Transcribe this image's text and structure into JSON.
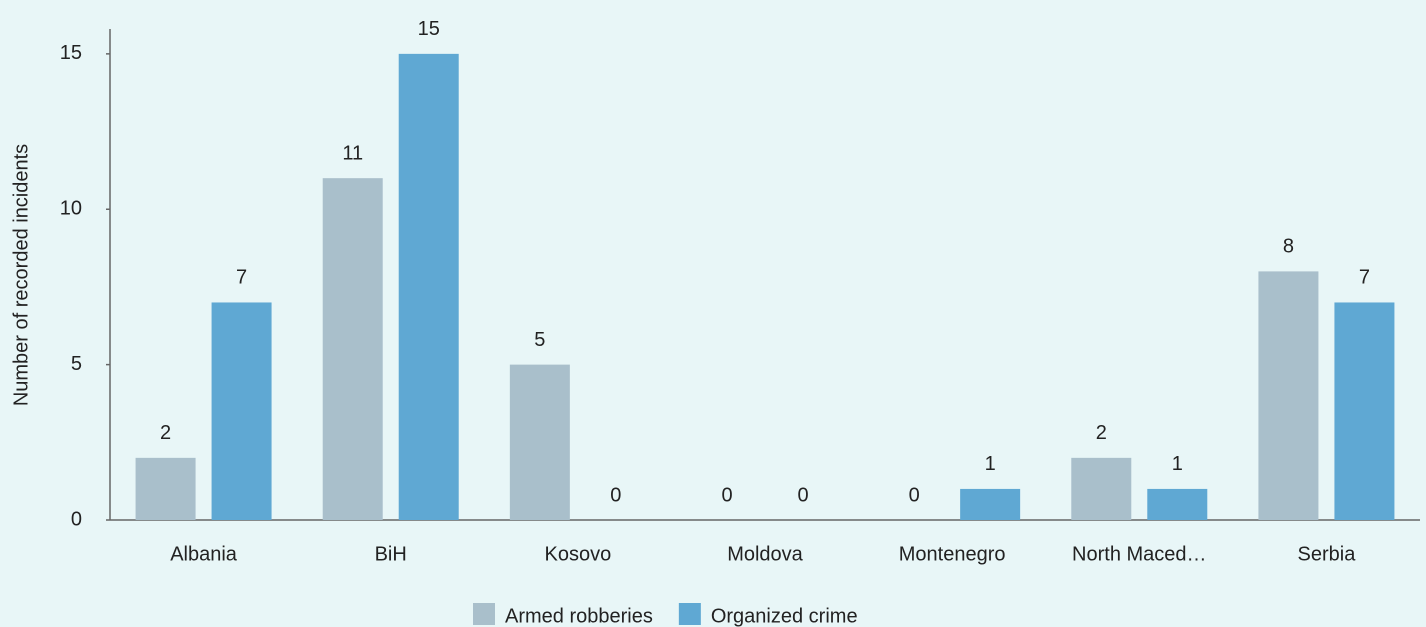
{
  "chart_data": {
    "type": "bar",
    "ylabel": "Number of recorded incidents",
    "categories": [
      "Albania",
      "BiH",
      "Kosovo",
      "Moldova",
      "Montenegro",
      "North Maced…",
      "Serbia"
    ],
    "series": [
      {
        "name": "Armed robberies",
        "color": "#a9bfcb",
        "values": [
          2,
          11,
          5,
          0,
          0,
          2,
          8
        ]
      },
      {
        "name": "Organized crime",
        "color": "#5fa8d3",
        "values": [
          7,
          15,
          0,
          0,
          1,
          1,
          7
        ]
      }
    ],
    "ylim": [
      0,
      15.8
    ],
    "yticks": [
      0,
      5,
      10,
      15
    ],
    "grid": false,
    "legend": "bottom"
  }
}
